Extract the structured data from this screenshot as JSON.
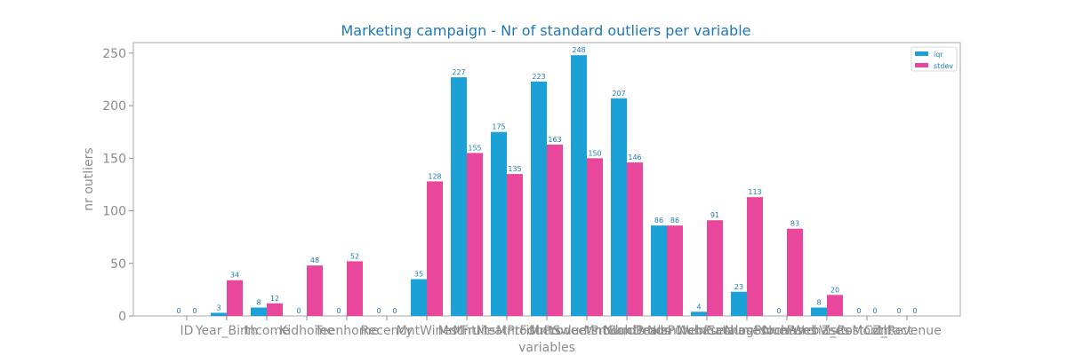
{
  "chart_data": {
    "type": "bar",
    "title": "Marketing campaign - Nr of standard outliers per variable",
    "xlabel": "variables",
    "ylabel": "nr outliers",
    "ylim": [
      0,
      260
    ],
    "yticks": [
      0,
      50,
      100,
      150,
      200,
      250
    ],
    "grid": false,
    "legend_position": "top-right",
    "categories": [
      "ID",
      "Year_Birth",
      "Income",
      "Kidhome",
      "Teenhome",
      "Recency",
      "MntWines",
      "MntFruits",
      "MntMeatProducts",
      "MntFishProducts",
      "MntSweetProducts",
      "MntGoldProds",
      "NumDealsPurchases",
      "NumWebPurchases",
      "NumCatalogPurchases",
      "NumStorePurchases",
      "NumWebVisitsMonth",
      "Z_CostContact",
      "Z_Revenue"
    ],
    "series": [
      {
        "name": "iqr",
        "color": "#1ba1d6",
        "values": [
          0,
          3,
          8,
          0,
          0,
          0,
          35,
          227,
          175,
          223,
          248,
          207,
          86,
          4,
          23,
          0,
          8,
          0,
          0
        ]
      },
      {
        "name": "stdev",
        "color": "#e8479b",
        "values": [
          0,
          34,
          12,
          48,
          52,
          0,
          128,
          155,
          135,
          163,
          150,
          146,
          86,
          91,
          113,
          83,
          20,
          0,
          0
        ]
      }
    ]
  }
}
